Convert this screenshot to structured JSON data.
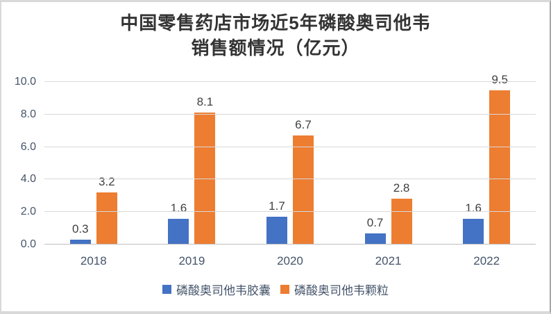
{
  "chart_data": {
    "type": "bar",
    "title": "中国零售药店市场近5年磷酸奥司他韦销售额情况（亿元）",
    "title_lines": [
      "中国零售药店市场近5年磷酸奥司他韦",
      "销售额情况（亿元）"
    ],
    "categories": [
      "2018",
      "2019",
      "2020",
      "2021",
      "2022"
    ],
    "series": [
      {
        "name": "磷酸奥司他韦胶囊",
        "key": "capsule",
        "color": "#4472C4",
        "values": [
          0.3,
          1.6,
          1.7,
          0.7,
          1.6
        ]
      },
      {
        "name": "磷酸奥司他韦颗粒",
        "key": "granule",
        "color": "#ED7D31",
        "values": [
          3.2,
          8.1,
          6.7,
          2.8,
          9.5
        ]
      }
    ],
    "ylim": [
      0,
      10
    ],
    "ytick_labels": [
      "0.0",
      "2.0",
      "4.0",
      "6.0",
      "8.0",
      "10.0"
    ],
    "grid": true,
    "legend_position": "bottom",
    "value_labels_shown": true
  },
  "colors": {
    "title_text": "#333333",
    "axis_label_text": "#44546A",
    "data_label_text": "#404040",
    "gridline": "#D9D9D9",
    "axis_line": "#BFBFBF",
    "frame_border": "#D9D9D9",
    "background": "#FFFFFF"
  }
}
